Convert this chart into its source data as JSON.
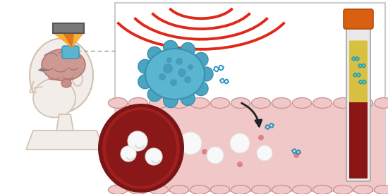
{
  "bg_color": "#ffffff",
  "panel_border_color": "#cccccc",
  "skin_color": "#f2ede8",
  "skin_outline": "#d0c0b0",
  "brain_color": "#c8908a",
  "brain_outline": "#b07070",
  "tumor_color": "#5ab5d0",
  "tumor_dark": "#3a90b0",
  "tumor_bump": "#4aa5c0",
  "ultrasound_device_color": "#707070",
  "ultrasound_beam_outer": "#f5a820",
  "ultrasound_beam_inner": "#e07018",
  "ultrasound_waves_color": "#e02818",
  "blood_vessel_outer": "#7a1515",
  "blood_vessel_mid": "#a02020",
  "blood_color": "#8b1818",
  "tissue_color": "#f0c8c8",
  "tissue_border": "#c89090",
  "rbc_color": "#c01818",
  "rbc_dark": "#801010",
  "wbc_color": "#f8f8f8",
  "wbc_shadow": "#e0e0e0",
  "dna_color": "#2090c0",
  "arrow_color": "#222222",
  "tube_glass": "#e8e8e8",
  "tube_glass_edge": "#aaaaaa",
  "tube_cap": "#d86010",
  "tube_cap_edge": "#b05010",
  "tube_blood": "#8b1515",
  "tube_serum": "#d8c040",
  "tube_dna": "#20a0c0",
  "dot_color": "#cc4040"
}
